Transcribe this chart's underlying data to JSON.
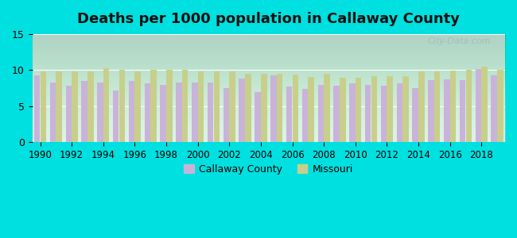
{
  "title": "Deaths per 1000 population in Callaway County",
  "years": [
    1990,
    1991,
    1992,
    1993,
    1994,
    1995,
    1996,
    1997,
    1998,
    1999,
    2000,
    2001,
    2002,
    2003,
    2004,
    2005,
    2006,
    2007,
    2008,
    2009,
    2010,
    2011,
    2012,
    2013,
    2014,
    2015,
    2016,
    2017,
    2018,
    2019
  ],
  "callaway": [
    9.3,
    8.3,
    7.8,
    8.5,
    8.3,
    7.2,
    8.5,
    8.2,
    8.0,
    8.3,
    8.3,
    8.3,
    7.5,
    8.8,
    7.0,
    9.3,
    7.7,
    7.4,
    8.0,
    7.9,
    8.2,
    8.0,
    7.8,
    8.2,
    7.5,
    8.6,
    8.7,
    8.6,
    10.2,
    9.3
  ],
  "missouri": [
    9.8,
    9.8,
    9.8,
    9.8,
    10.3,
    10.0,
    9.8,
    10.0,
    10.0,
    10.0,
    9.8,
    9.8,
    9.8,
    9.5,
    9.5,
    9.5,
    9.4,
    9.1,
    9.5,
    9.0,
    9.0,
    9.2,
    9.2,
    9.2,
    9.8,
    9.8,
    9.9,
    10.0,
    10.5,
    10.1
  ],
  "callaway_color": "#c9b3d9",
  "missouri_color": "#c8cf8a",
  "background_color": "#00e0e0",
  "plot_bg_color": "#d8f0e8",
  "ylim": [
    0,
    15
  ],
  "yticks": [
    0,
    5,
    10,
    15
  ],
  "xlabel_ticks": [
    1990,
    1992,
    1994,
    1996,
    1998,
    2000,
    2002,
    2004,
    2006,
    2008,
    2010,
    2012,
    2014,
    2016,
    2018
  ],
  "legend_callaway": "Callaway County",
  "legend_missouri": "Missouri",
  "watermark": "City-Data.com"
}
